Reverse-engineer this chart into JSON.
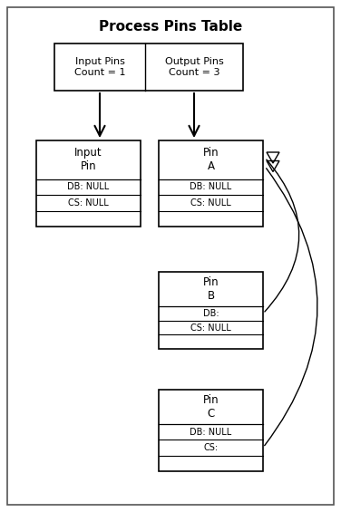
{
  "title": "Process Pins Table",
  "title_fontsize": 11,
  "title_fontweight": "bold",
  "bg_color": "#ffffff",
  "figsize": [
    3.76,
    5.65
  ],
  "dpi": 100,
  "header_box_input": {
    "label": "Input Pins\nCount = 1"
  },
  "header_box_output": {
    "label": "Output Pins\nCount = 3"
  },
  "pin_boxes": [
    {
      "id": "input_pin",
      "title": "Input\nPin",
      "rows": [
        "DB: NULL",
        "CS: NULL"
      ]
    },
    {
      "id": "pin_a",
      "title": "Pin\nA",
      "rows": [
        "DB: NULL",
        "CS: NULL"
      ]
    },
    {
      "id": "pin_b",
      "title": "Pin\nB",
      "rows": [
        "DB:",
        "CS: NULL"
      ]
    },
    {
      "id": "pin_c",
      "title": "Pin\nC",
      "rows": [
        "DB: NULL",
        "CS:"
      ]
    }
  ]
}
